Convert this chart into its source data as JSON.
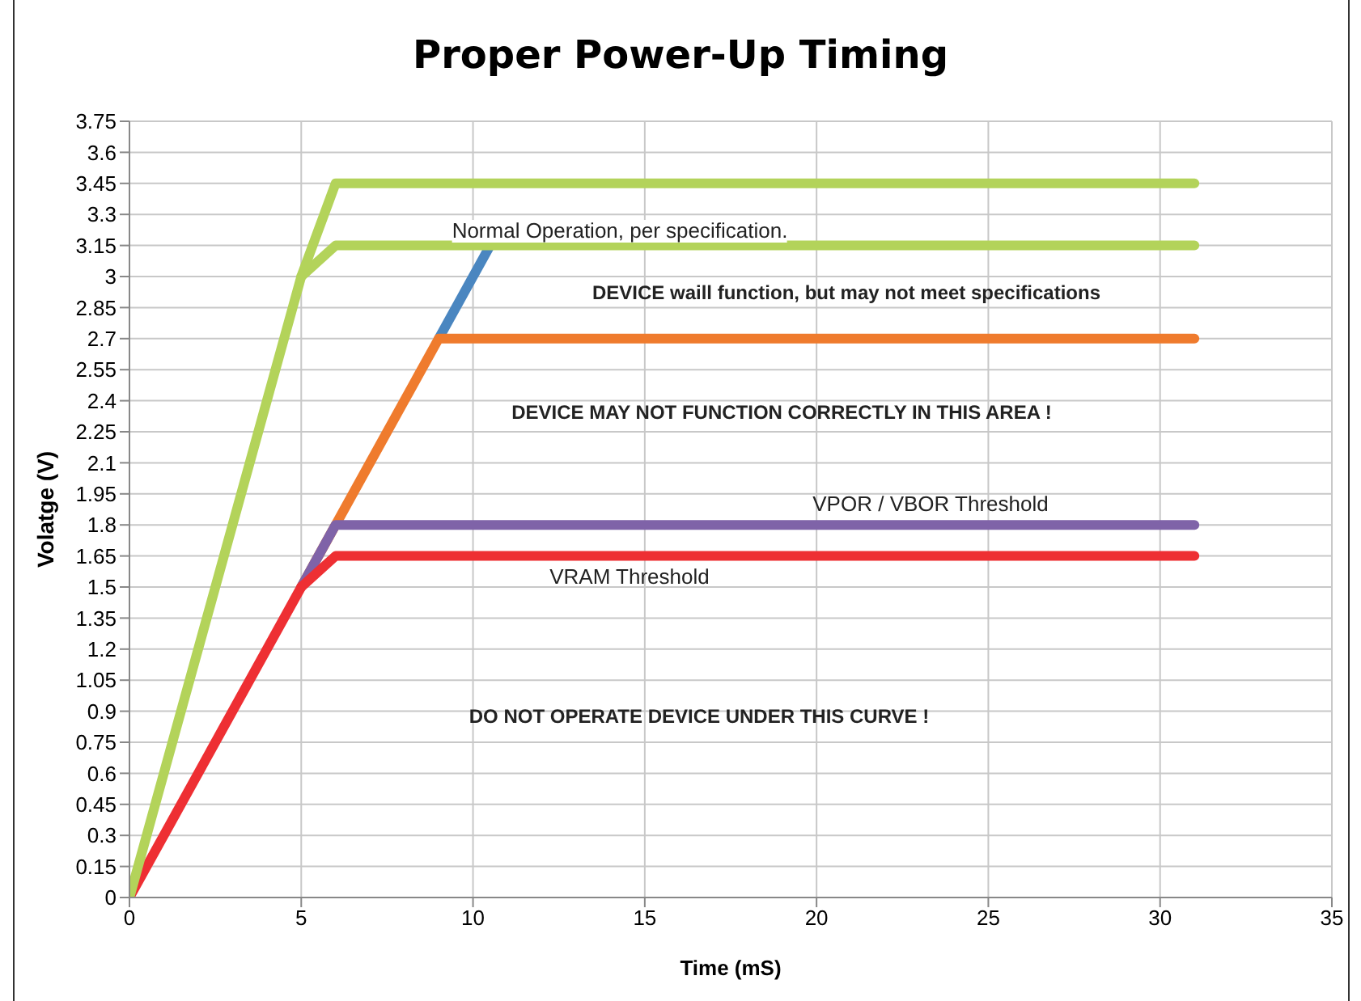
{
  "chart_data": {
    "type": "line",
    "title": "Proper Power-Up Timing",
    "xlabel": "Time (mS)",
    "ylabel": "Volatge (V)",
    "xlim": [
      0,
      35
    ],
    "xticks": [
      0,
      5,
      10,
      15,
      20,
      25,
      30,
      35
    ],
    "ylim": [
      0,
      3.75
    ],
    "yticks": [
      0,
      0.15,
      0.3,
      0.45,
      0.6,
      0.75,
      0.9,
      1.05,
      1.2,
      1.35,
      1.5,
      1.65,
      1.8,
      1.95,
      2.1,
      2.25,
      2.4,
      2.55,
      2.7,
      2.85,
      3,
      3.15,
      3.3,
      3.45,
      3.6,
      3.75
    ],
    "grid": true,
    "line_style": "solid",
    "series": [
      {
        "color": "#4a86c0",
        "x": [
          9,
          10.5
        ],
        "values": [
          2.7,
          3.15
        ]
      },
      {
        "color": "#ef7b2d",
        "x": [
          5,
          9,
          31
        ],
        "values": [
          1.5,
          2.7,
          2.7
        ]
      },
      {
        "color": "#7f63a8",
        "x": [
          5,
          6,
          31
        ],
        "values": [
          1.5,
          1.8,
          1.8
        ]
      },
      {
        "color": "#ee2f33",
        "x": [
          0,
          5,
          6,
          31
        ],
        "values": [
          0,
          1.5,
          1.65,
          1.65
        ]
      },
      {
        "color": "#b3d35a",
        "x": [
          5,
          6,
          31
        ],
        "values": [
          3,
          3.15,
          3.15
        ]
      },
      {
        "color": "#b3d35a",
        "x": [
          0,
          5,
          6,
          31
        ],
        "values": [
          0,
          3,
          3.45,
          3.45
        ]
      }
    ],
    "annotations": [
      "Normal Operation, per specification.",
      "DEVICE waill function, but may not meet specifications",
      "DEVICE MAY NOT FUNCTION CORRECTLY IN THIS AREA !",
      "VPOR / VBOR Threshold",
      "VRAM Threshold",
      "DO NOT OPERATE DEVICE UNDER THIS CURVE !"
    ]
  }
}
